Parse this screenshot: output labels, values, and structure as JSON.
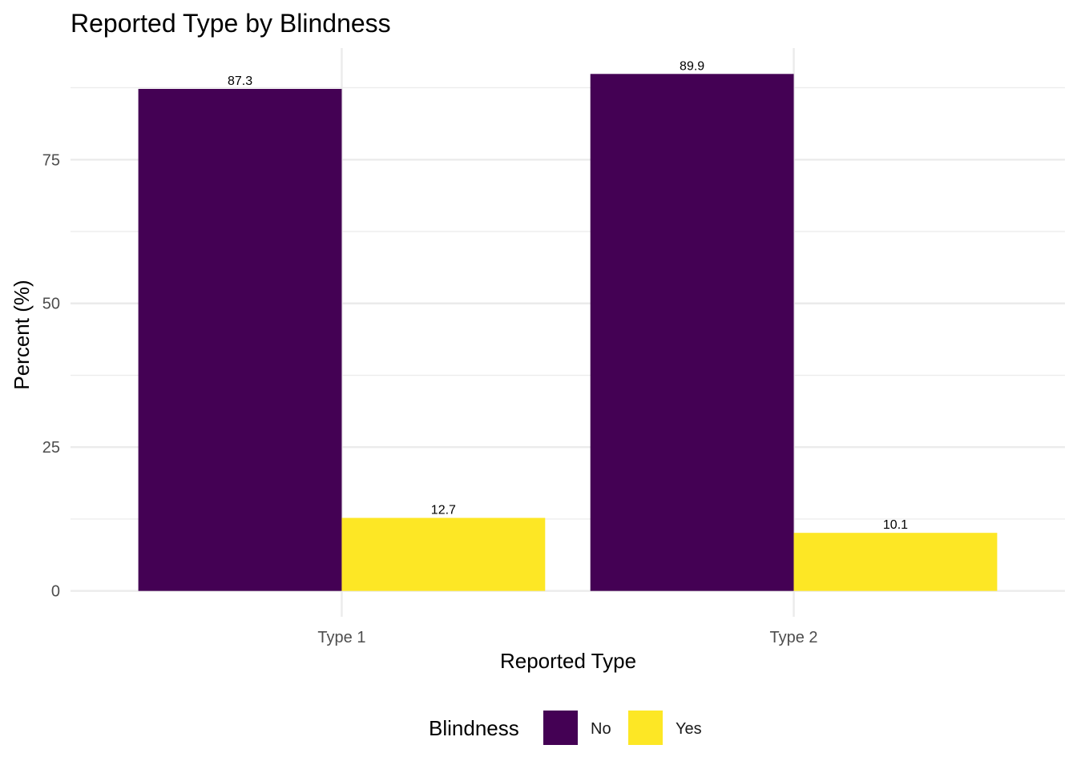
{
  "chart_data": {
    "type": "bar",
    "title": "Reported Type by Blindness",
    "xlabel": "Reported Type",
    "ylabel": "Percent (%)",
    "categories": [
      "Type 1",
      "Type 2"
    ],
    "series": [
      {
        "name": "No",
        "color": "#440154",
        "values": [
          87.3,
          89.9
        ],
        "labels": [
          "87.3",
          "89.9"
        ]
      },
      {
        "name": "Yes",
        "color": "#FDE725",
        "values": [
          12.7,
          10.1
        ],
        "labels": [
          "12.7",
          "10.1"
        ]
      }
    ],
    "yticks": [
      0,
      25,
      50,
      75
    ],
    "yticks_minor": [
      12.5,
      37.5,
      62.5,
      87.5
    ],
    "ylim": [
      -4.5,
      94.4
    ],
    "grid": true,
    "legend": {
      "title": "Blindness",
      "position": "bottom"
    }
  }
}
